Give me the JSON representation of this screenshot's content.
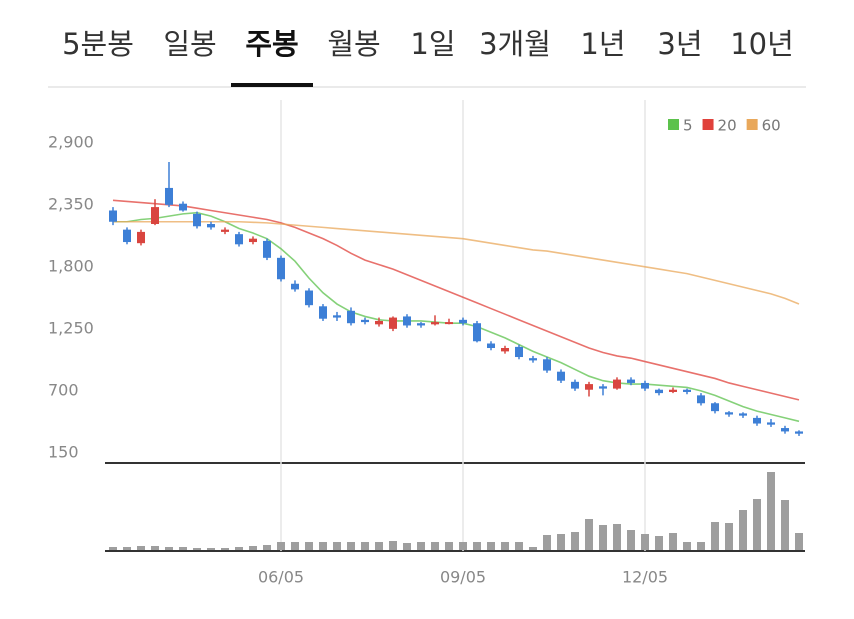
{
  "tabs": [
    "5분봉",
    "일봉",
    "주봉",
    "월봉",
    "1일",
    "3개월",
    "1년",
    "3년",
    "10년"
  ],
  "selected_tab": 2,
  "chart_data": {
    "type": "candlestick",
    "categories": [
      null,
      null,
      null,
      null,
      null,
      null,
      null,
      null,
      null,
      null,
      null,
      null,
      "06/05",
      null,
      null,
      null,
      null,
      null,
      null,
      null,
      null,
      null,
      null,
      null,
      null,
      "09/05",
      null,
      null,
      null,
      null,
      null,
      null,
      null,
      null,
      null,
      null,
      null,
      null,
      "12/05",
      null,
      null,
      null,
      null,
      null,
      null,
      null,
      null,
      null,
      null,
      null
    ],
    "open": [
      2300,
      2130,
      2010,
      2180,
      2500,
      2360,
      2270,
      2180,
      2110,
      2090,
      2020,
      2030,
      1880,
      1650,
      1590,
      1450,
      1370,
      1410,
      1330,
      1290,
      1250,
      1360,
      1300,
      1290,
      1300,
      1330,
      1300,
      1120,
      1050,
      1090,
      990,
      980,
      870,
      780,
      710,
      740,
      720,
      800,
      770,
      710,
      690,
      710,
      660,
      590,
      510,
      500,
      460,
      420,
      370,
      340
    ],
    "high": [
      2330,
      2150,
      2130,
      2400,
      2730,
      2380,
      2290,
      2200,
      2150,
      2110,
      2070,
      2050,
      1900,
      1680,
      1610,
      1470,
      1400,
      1440,
      1350,
      1350,
      1360,
      1380,
      1310,
      1370,
      1340,
      1350,
      1320,
      1140,
      1100,
      1110,
      1010,
      1000,
      890,
      800,
      780,
      760,
      820,
      820,
      790,
      720,
      730,
      720,
      680,
      600,
      520,
      510,
      480,
      450,
      390,
      350
    ],
    "low": [
      2170,
      2000,
      1990,
      2170,
      2330,
      2290,
      2140,
      2130,
      2090,
      1980,
      2000,
      1860,
      1670,
      1580,
      1440,
      1320,
      1320,
      1280,
      1290,
      1270,
      1230,
      1260,
      1260,
      1280,
      1290,
      1280,
      1130,
      1060,
      1030,
      980,
      950,
      860,
      770,
      700,
      650,
      660,
      710,
      750,
      700,
      660,
      680,
      670,
      570,
      500,
      470,
      460,
      390,
      380,
      320,
      300
    ],
    "close": [
      2200,
      2020,
      2110,
      2330,
      2350,
      2300,
      2160,
      2150,
      2130,
      2000,
      2050,
      1880,
      1690,
      1600,
      1460,
      1340,
      1350,
      1300,
      1310,
      1320,
      1350,
      1280,
      1280,
      1310,
      1310,
      1300,
      1140,
      1080,
      1080,
      1000,
      970,
      880,
      790,
      720,
      760,
      720,
      800,
      770,
      720,
      680,
      710,
      690,
      590,
      520,
      490,
      480,
      410,
      400,
      340,
      320
    ],
    "up_color": "#d9453f",
    "down_color": "#3d7fd6",
    "series": [
      {
        "name": "5",
        "color": "#5cc24c",
        "values": [
          2200,
          2200,
          2220,
          2230,
          2250,
          2270,
          2280,
          2250,
          2200,
          2140,
          2100,
          2050,
          1960,
          1850,
          1700,
          1570,
          1470,
          1400,
          1360,
          1330,
          1320,
          1320,
          1320,
          1310,
          1300,
          1300,
          1270,
          1220,
          1170,
          1110,
          1050,
          1000,
          950,
          890,
          830,
          790,
          770,
          760,
          760,
          750,
          740,
          730,
          700,
          660,
          610,
          560,
          520,
          490,
          460,
          430
        ]
      },
      {
        "name": "20",
        "color": "#e0413b",
        "values": [
          2390,
          2380,
          2370,
          2360,
          2350,
          2340,
          2320,
          2300,
          2280,
          2260,
          2240,
          2220,
          2190,
          2150,
          2100,
          2050,
          1990,
          1920,
          1860,
          1820,
          1780,
          1730,
          1680,
          1630,
          1580,
          1530,
          1480,
          1430,
          1380,
          1330,
          1280,
          1230,
          1180,
          1130,
          1080,
          1040,
          1010,
          990,
          960,
          930,
          900,
          870,
          840,
          810,
          770,
          740,
          710,
          680,
          650,
          620
        ]
      },
      {
        "name": "60",
        "color": "#e9a85b",
        "values": [
          2200,
          2200,
          2200,
          2200,
          2200,
          2200,
          2200,
          2200,
          2200,
          2200,
          2195,
          2190,
          2180,
          2170,
          2160,
          2150,
          2140,
          2130,
          2120,
          2110,
          2100,
          2090,
          2080,
          2070,
          2060,
          2050,
          2030,
          2010,
          1990,
          1970,
          1950,
          1940,
          1920,
          1900,
          1880,
          1860,
          1840,
          1820,
          1800,
          1780,
          1760,
          1740,
          1710,
          1680,
          1650,
          1620,
          1590,
          1560,
          1520,
          1470
        ]
      }
    ],
    "volume": {
      "color": "#9e9e9e",
      "values": [
        3,
        3,
        4,
        4,
        3,
        3,
        2,
        2,
        2,
        3,
        4,
        5,
        8,
        8,
        8,
        8,
        8,
        8,
        8,
        8,
        9,
        7,
        8,
        8,
        8,
        8,
        8,
        8,
        8,
        8,
        3,
        15,
        16,
        18,
        31,
        25,
        26,
        20,
        16,
        14,
        17,
        8,
        8,
        28,
        27,
        40,
        51,
        78,
        50,
        17
      ]
    },
    "ylim": [
      60,
      3280
    ],
    "yticks": [
      {
        "value": 2900,
        "label": "2,900"
      },
      {
        "value": 2350,
        "label": "2,350"
      },
      {
        "value": 1800,
        "label": "1,800"
      },
      {
        "value": 1250,
        "label": "1,250"
      },
      700,
      150
    ]
  }
}
